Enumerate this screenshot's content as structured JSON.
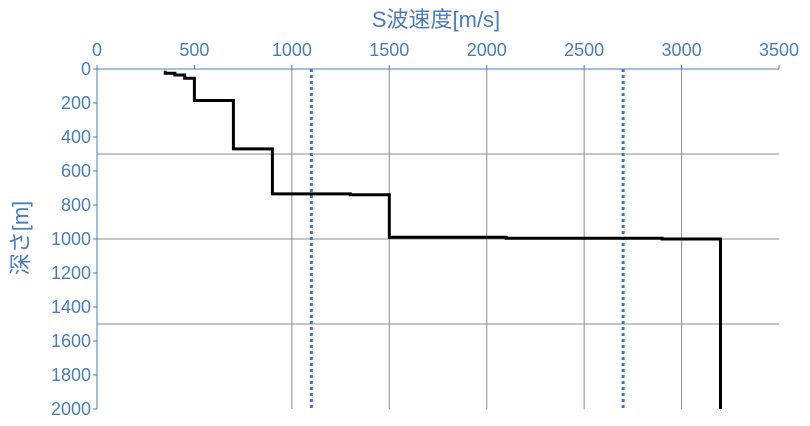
{
  "chart_data": {
    "type": "line",
    "title": "",
    "xlabel": "S波速度[m/s]",
    "ylabel": "深さ[m]",
    "x_axis_position": "top",
    "y_axis_inverted": true,
    "xlim": [
      0,
      3500
    ],
    "ylim": [
      0,
      2000
    ],
    "x_ticks": [
      0,
      500,
      1000,
      1500,
      2000,
      2500,
      3000,
      3500
    ],
    "y_ticks": [
      0,
      200,
      400,
      600,
      800,
      1000,
      1200,
      1400,
      1600,
      1800,
      2000
    ],
    "x_gridlines": [
      1000,
      1500,
      2000,
      2500,
      3000
    ],
    "y_gridlines": [
      500,
      1000,
      1500
    ],
    "reference_lines": [
      {
        "x": 1100,
        "style": "dotted",
        "color": "#4472c4"
      },
      {
        "x": 2700,
        "style": "dotted",
        "color": "#4472c4"
      }
    ],
    "series": [
      {
        "color": "#000000",
        "points": [
          [
            350,
            10
          ],
          [
            350,
            25
          ],
          [
            400,
            25
          ],
          [
            400,
            35
          ],
          [
            450,
            35
          ],
          [
            450,
            55
          ],
          [
            500,
            55
          ],
          [
            500,
            185
          ],
          [
            700,
            185
          ],
          [
            700,
            470
          ],
          [
            900,
            470
          ],
          [
            900,
            735
          ],
          [
            1300,
            735
          ],
          [
            1300,
            740
          ],
          [
            1500,
            740
          ],
          [
            1500,
            990
          ],
          [
            2100,
            990
          ],
          [
            2100,
            995
          ],
          [
            2900,
            995
          ],
          [
            2900,
            1000
          ],
          [
            3200,
            1000
          ],
          [
            3200,
            2000
          ]
        ]
      }
    ],
    "colors": {
      "axis_text": "#4a7ebb",
      "grid": "#8c8c8c",
      "axis": "#4a7ebb"
    }
  }
}
